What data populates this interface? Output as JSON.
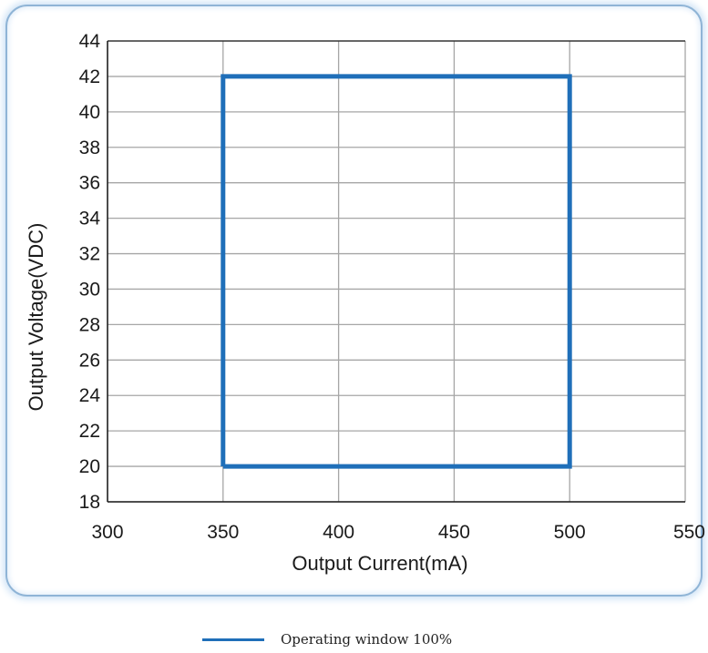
{
  "chart_data": {
    "type": "line",
    "xlabel": "Output Current(mA)",
    "ylabel": "Output Voltage(VDC)",
    "xlim": [
      300,
      550
    ],
    "ylim": [
      18,
      44
    ],
    "xticks": [
      "300",
      "350",
      "400",
      "450",
      "500",
      "550"
    ],
    "yticks": [
      "18",
      "20",
      "22",
      "24",
      "26",
      "28",
      "30",
      "32",
      "34",
      "36",
      "38",
      "40",
      "42",
      "44"
    ],
    "grid": true,
    "legend_position": "bottom-center",
    "series": [
      {
        "name": "Operating window 100%",
        "color": "#1f6fb9",
        "x": [
          350,
          350,
          500,
          500,
          350
        ],
        "y": [
          20,
          42,
          42,
          20,
          20
        ]
      }
    ]
  },
  "colors": {
    "panel_border": "#8fb4d6",
    "grid": "#a6a6a6",
    "axis": "#1a1a1a"
  }
}
